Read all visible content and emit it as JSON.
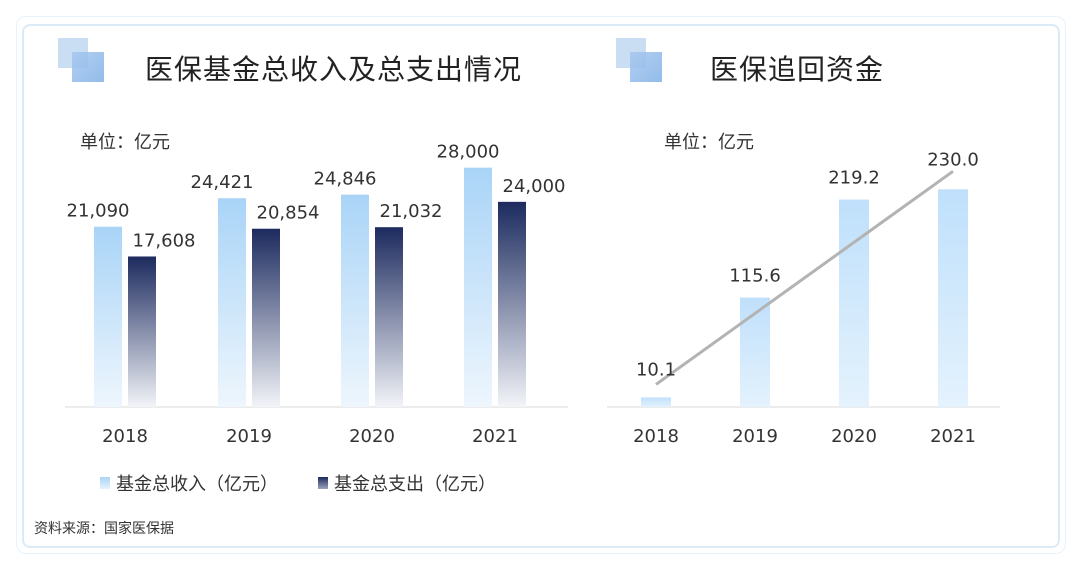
{
  "left_panel": {
    "title": "医保基金总收入及总支出情况",
    "unit_label": "单位：亿元",
    "legend": [
      "基金总收入（亿元）",
      "基金总支出（亿元）"
    ]
  },
  "right_panel": {
    "title": "医保追回资金",
    "unit_label": "单位：亿元"
  },
  "source_note": "资料来源：国家医保据",
  "colors": {
    "income_bar_top": "#a9d4f7",
    "expense_bar_top": "#1c2a5e",
    "recovery_bar": "#bfe0fb",
    "trend_line": "#b3b3b3"
  },
  "chart_data": [
    {
      "type": "bar",
      "title": "医保基金总收入及总支出情况",
      "categories": [
        "2018",
        "2019",
        "2020",
        "2021"
      ],
      "series": [
        {
          "name": "基金总收入（亿元）",
          "values": [
            21090,
            24421,
            24846,
            28000
          ],
          "labels": [
            "21,090",
            "24,421",
            "24,846",
            "28,000"
          ]
        },
        {
          "name": "基金总支出（亿元）",
          "values": [
            17608,
            20854,
            21032,
            24000
          ],
          "labels": [
            "17,608",
            "20,854",
            "21,032",
            "24,000"
          ]
        }
      ],
      "ylim": [
        0,
        31000
      ],
      "grid": false,
      "legend_position": "bottom"
    },
    {
      "type": "bar",
      "title": "医保追回资金",
      "categories": [
        "2018",
        "2019",
        "2020",
        "2021"
      ],
      "values": [
        10.1,
        115.6,
        219.2,
        230.0
      ],
      "labels": [
        "10.1",
        "115.6",
        "219.2",
        "230.0"
      ],
      "trend_line": true,
      "ylim": [
        0,
        280
      ],
      "grid": false
    }
  ]
}
